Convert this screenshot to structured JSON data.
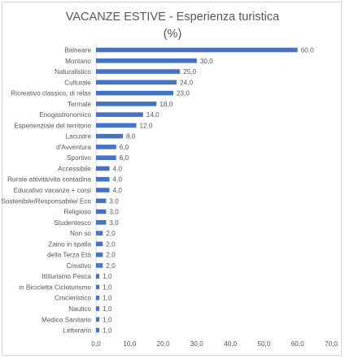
{
  "chart_data": {
    "type": "bar",
    "orientation": "horizontal",
    "title": "VACANZE ESTIVE - Esperienza turistica",
    "subtitle": "(%)",
    "categories": [
      "Balneare",
      "Montano",
      "Naturalistico",
      "Culturale",
      "Ricreativo classico, di relax",
      "Termale",
      "Enogastronomico",
      "Esperienziale del territorio",
      "Lacustre",
      "d'Avventura",
      "Sportivo",
      "Accessibile",
      "Rurale attività/vita contadina",
      "Educativo vacanze + corsi",
      "Sostenibile/Responsabile/ Eco",
      "Religioso",
      "Studentesco",
      "Non so",
      "Zaino in spalla",
      "della Terza Età",
      "Creativo",
      "Ittiturismo Pesca",
      "in Bicicletta Cicloturismo",
      "Crocieristico",
      "Nautico",
      "Medico Sanitario",
      "Letterario"
    ],
    "values": [
      60.0,
      30.0,
      25.0,
      24.0,
      23.0,
      18.0,
      14.0,
      12.0,
      8.0,
      6.0,
      6.0,
      4.0,
      4.0,
      4.0,
      3.0,
      3.0,
      3.0,
      2.0,
      2.0,
      2.0,
      2.0,
      1.0,
      1.0,
      1.0,
      1.0,
      1.0,
      1.0
    ],
    "value_labels": [
      "60,0",
      "30,0",
      "25,0",
      "24,0",
      "23,0",
      "18,0",
      "14,0",
      "12,0",
      "8,0",
      "6,0",
      "6,0",
      "4,0",
      "4,0",
      "4,0",
      "3,0",
      "3,0",
      "3,0",
      "2,0",
      "2,0",
      "2,0",
      "2,0",
      "1,0",
      "1,0",
      "1,0",
      "1,0",
      "1,0",
      "1,0"
    ],
    "x_ticks": [
      "0,0",
      "10,0",
      "20,0",
      "30,0",
      "40,0",
      "50,0",
      "60,0",
      "70,0"
    ],
    "xlim": [
      0,
      70
    ],
    "grid": false,
    "legend": "none",
    "bar_color": "#4472c4",
    "text_color": "#595959"
  }
}
